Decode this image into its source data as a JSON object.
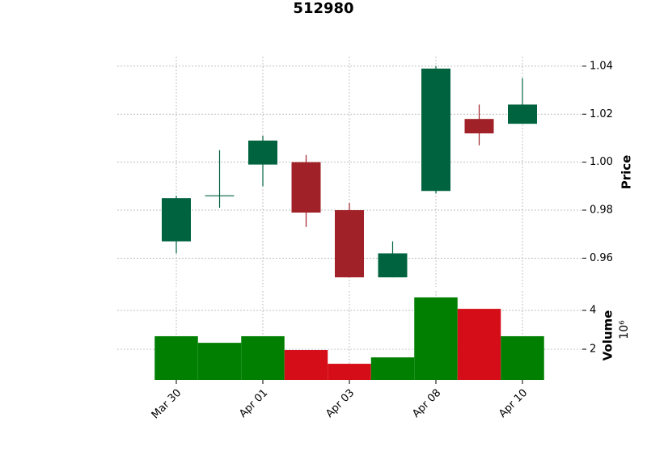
{
  "chart_data": {
    "type": "candlestick",
    "title": "512980",
    "categories": [
      "Mar 30",
      null,
      "Apr 01",
      null,
      "Apr 03",
      null,
      "Apr 08",
      null,
      "Apr 10"
    ],
    "open": [
      0.967,
      0.986,
      0.999,
      1.0,
      0.98,
      0.952,
      0.988,
      1.018,
      1.016
    ],
    "high": [
      0.986,
      1.005,
      1.011,
      1.003,
      0.983,
      0.967,
      1.04,
      1.024,
      1.035
    ],
    "low": [
      0.962,
      0.981,
      0.99,
      0.973,
      0.952,
      0.952,
      0.987,
      1.007,
      1.016
    ],
    "close": [
      0.985,
      0.986,
      1.009,
      0.979,
      0.952,
      0.962,
      1.039,
      1.012,
      1.024
    ],
    "up_color": "#006340",
    "down_color": "#a02128",
    "ylabel": "Price",
    "ylim": [
      0.948,
      1.044
    ],
    "yticks": [
      {
        "value": 0.96,
        "label": "0.96"
      },
      {
        "value": 0.98,
        "label": "0.98"
      },
      {
        "value": 1.0,
        "label": "1.00"
      },
      {
        "value": 1.02,
        "label": "1.02"
      },
      {
        "value": 1.04,
        "label": "1.04"
      }
    ],
    "grid": true,
    "volume": {
      "ylabel": "Volume",
      "multiplier_label": "10⁶",
      "values": [
        2.67,
        2.33,
        2.67,
        1.96,
        1.25,
        1.58,
        4.67,
        4.08,
        2.67
      ],
      "up_color": "#007f00",
      "down_color": "#d50d18",
      "ylim": [
        0.42,
        5
      ],
      "yticks": [
        2,
        4
      ]
    }
  }
}
